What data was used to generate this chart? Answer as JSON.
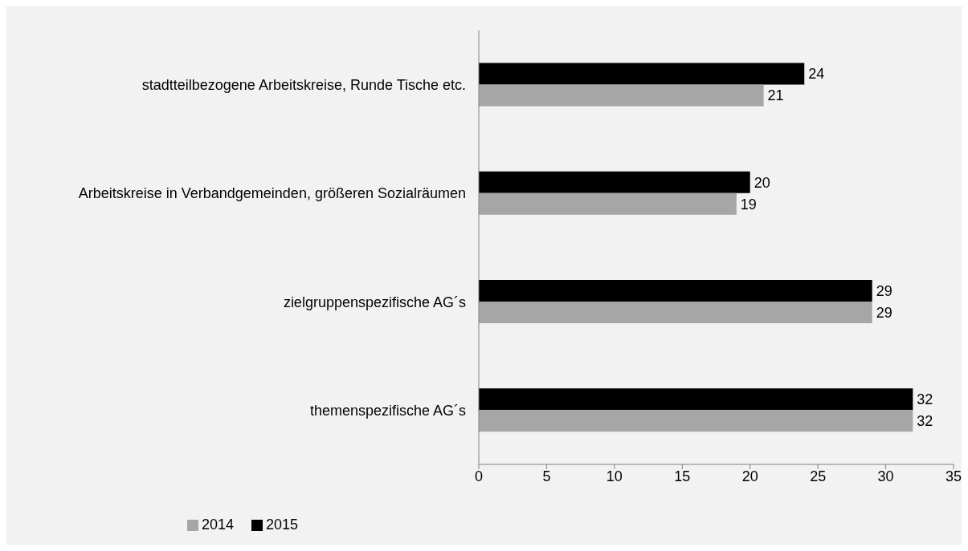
{
  "chart_data": {
    "type": "bar",
    "orientation": "horizontal",
    "categories": [
      "stadtteilbezogene Arbeitskreise, Runde Tische etc.",
      "Arbeitskreise in Verbandgemeinden, größeren Sozialräumen",
      "zielgruppenspezifische AG´s",
      "themenspezifische AG´s"
    ],
    "series": [
      {
        "name": "2015",
        "color": "#000000",
        "values": [
          24,
          20,
          29,
          32
        ]
      },
      {
        "name": "2014",
        "color": "#a6a6a6",
        "values": [
          21,
          19,
          29,
          32
        ]
      }
    ],
    "xlim": [
      0,
      35
    ],
    "xticks": [
      0,
      5,
      10,
      15,
      20,
      25,
      30,
      35
    ],
    "data_labels": true,
    "legend": "bottom left",
    "grid": false
  }
}
